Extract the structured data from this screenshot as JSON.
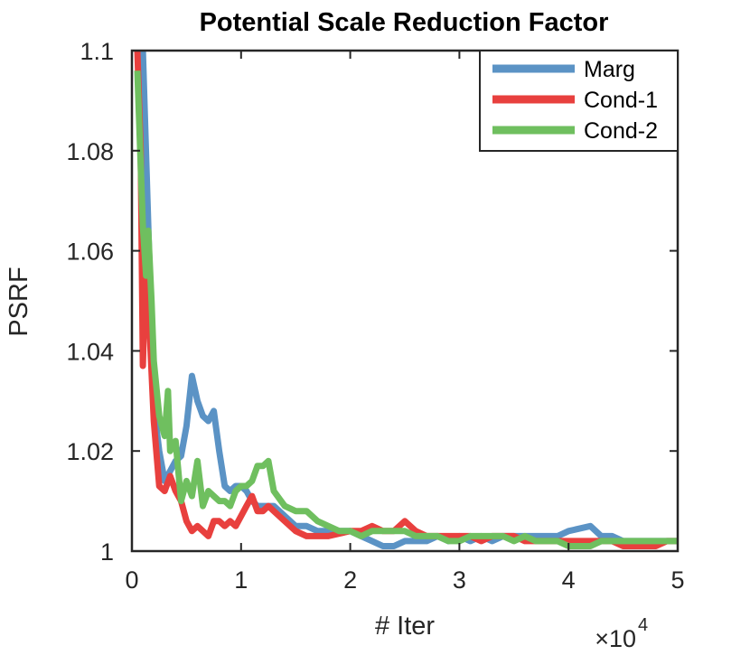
{
  "chart_data": {
    "type": "line",
    "title": "Potential Scale Reduction Factor",
    "xlabel": "# Iter",
    "ylabel": "PSRF",
    "x_multiplier_label": "×10",
    "x_multiplier_exponent": "4",
    "xlim": [
      0,
      5
    ],
    "ylim": [
      1,
      1.1
    ],
    "xticks": [
      0,
      1,
      2,
      3,
      4,
      5
    ],
    "xtick_labels": [
      "0",
      "1",
      "2",
      "3",
      "4",
      "5"
    ],
    "yticks": [
      1,
      1.02,
      1.04,
      1.06,
      1.08,
      1.1
    ],
    "ytick_labels": [
      "1",
      "1.02",
      "1.04",
      "1.06",
      "1.08",
      "1.1"
    ],
    "legend_position": "top-right",
    "series": [
      {
        "name": "Marg",
        "color": "#5b93c5",
        "x": [
          0.05,
          0.1,
          0.15,
          0.2,
          0.25,
          0.3,
          0.35,
          0.4,
          0.45,
          0.5,
          0.55,
          0.6,
          0.65,
          0.7,
          0.75,
          0.8,
          0.85,
          0.9,
          0.95,
          1.0,
          1.05,
          1.1,
          1.15,
          1.2,
          1.3,
          1.4,
          1.5,
          1.6,
          1.7,
          1.8,
          1.9,
          2.0,
          2.1,
          2.2,
          2.3,
          2.4,
          2.5,
          2.6,
          2.7,
          2.8,
          2.9,
          3.0,
          3.1,
          3.2,
          3.3,
          3.4,
          3.5,
          3.6,
          3.7,
          3.8,
          3.9,
          4.0,
          4.1,
          4.2,
          4.3,
          4.4,
          4.5,
          4.6,
          4.7,
          4.8,
          4.9,
          5.0
        ],
        "y": [
          1.1,
          1.1,
          1.065,
          1.029,
          1.02,
          1.014,
          1.016,
          1.018,
          1.019,
          1.025,
          1.035,
          1.03,
          1.027,
          1.026,
          1.028,
          1.02,
          1.013,
          1.012,
          1.013,
          1.013,
          1.012,
          1.01,
          1.009,
          1.009,
          1.009,
          1.007,
          1.005,
          1.005,
          1.004,
          1.004,
          1.004,
          1.004,
          1.003,
          1.002,
          1.001,
          1.001,
          1.002,
          1.002,
          1.002,
          1.003,
          1.002,
          1.003,
          1.002,
          1.003,
          1.002,
          1.003,
          1.003,
          1.003,
          1.003,
          1.003,
          1.003,
          1.004,
          1.0045,
          1.005,
          1.003,
          1.003,
          1.002,
          1.002,
          1.002,
          1.002,
          1.002,
          1.002
        ]
      },
      {
        "name": "Cond-1",
        "color": "#e8403e",
        "x": [
          0.05,
          0.08,
          0.1,
          0.13,
          0.15,
          0.2,
          0.25,
          0.3,
          0.35,
          0.4,
          0.45,
          0.5,
          0.55,
          0.6,
          0.65,
          0.7,
          0.75,
          0.8,
          0.85,
          0.9,
          0.95,
          1.0,
          1.05,
          1.1,
          1.15,
          1.2,
          1.25,
          1.3,
          1.4,
          1.5,
          1.6,
          1.7,
          1.8,
          1.9,
          2.0,
          2.1,
          2.2,
          2.3,
          2.4,
          2.5,
          2.6,
          2.7,
          2.8,
          2.9,
          3.0,
          3.1,
          3.2,
          3.3,
          3.4,
          3.5,
          3.6,
          3.7,
          3.8,
          3.9,
          4.0,
          4.1,
          4.2,
          4.3,
          4.4,
          4.5,
          4.6,
          4.7,
          4.8,
          4.9,
          5.0
        ],
        "y": [
          1.1,
          1.08,
          1.037,
          1.06,
          1.05,
          1.026,
          1.013,
          1.012,
          1.015,
          1.012,
          1.01,
          1.006,
          1.004,
          1.005,
          1.004,
          1.003,
          1.006,
          1.006,
          1.005,
          1.006,
          1.005,
          1.007,
          1.009,
          1.011,
          1.008,
          1.008,
          1.009,
          1.008,
          1.006,
          1.004,
          1.003,
          1.003,
          1.003,
          1.0035,
          1.004,
          1.004,
          1.005,
          1.004,
          1.004,
          1.006,
          1.004,
          1.003,
          1.003,
          1.003,
          1.003,
          1.003,
          1.002,
          1.003,
          1.003,
          1.003,
          1.002,
          1.002,
          1.002,
          1.002,
          1.002,
          1.002,
          1.002,
          1.002,
          1.002,
          1.001,
          1.001,
          1.001,
          1.001,
          1.002,
          1.002
        ]
      },
      {
        "name": "Cond-2",
        "color": "#6fbf5f",
        "x": [
          0.05,
          0.1,
          0.13,
          0.15,
          0.18,
          0.2,
          0.25,
          0.3,
          0.33,
          0.35,
          0.4,
          0.45,
          0.5,
          0.55,
          0.6,
          0.65,
          0.7,
          0.75,
          0.8,
          0.85,
          0.9,
          0.95,
          1.0,
          1.05,
          1.1,
          1.15,
          1.2,
          1.25,
          1.3,
          1.4,
          1.5,
          1.6,
          1.7,
          1.8,
          1.9,
          2.0,
          2.1,
          2.2,
          2.3,
          2.4,
          2.5,
          2.6,
          2.7,
          2.8,
          2.9,
          3.0,
          3.1,
          3.2,
          3.3,
          3.4,
          3.5,
          3.6,
          3.7,
          3.8,
          3.9,
          4.0,
          4.1,
          4.2,
          4.3,
          4.4,
          4.5,
          4.6,
          4.7,
          4.8,
          4.9,
          5.0
        ],
        "y": [
          1.096,
          1.065,
          1.055,
          1.064,
          1.05,
          1.038,
          1.027,
          1.023,
          1.032,
          1.02,
          1.022,
          1.01,
          1.014,
          1.011,
          1.018,
          1.009,
          1.012,
          1.011,
          1.01,
          1.01,
          1.009,
          1.012,
          1.013,
          1.013,
          1.014,
          1.017,
          1.017,
          1.018,
          1.012,
          1.009,
          1.008,
          1.008,
          1.006,
          1.005,
          1.004,
          1.004,
          1.003,
          1.004,
          1.004,
          1.004,
          1.004,
          1.003,
          1.003,
          1.003,
          1.002,
          1.002,
          1.003,
          1.003,
          1.003,
          1.003,
          1.002,
          1.003,
          1.002,
          1.002,
          1.002,
          1.001,
          1.001,
          1.001,
          1.002,
          1.002,
          1.002,
          1.002,
          1.002,
          1.002,
          1.002,
          1.002
        ]
      }
    ]
  }
}
